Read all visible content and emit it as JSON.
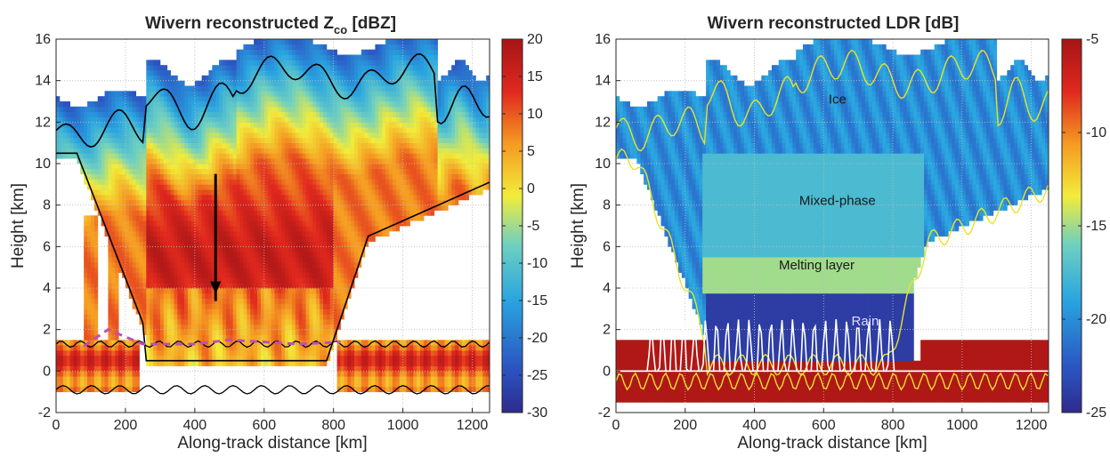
{
  "chart_data": [
    {
      "type": "heatmap",
      "title": "Wivern reconstructed Z",
      "title_subscript": "co",
      "title_suffix": " [dBZ]",
      "xlabel": "Along-track distance [km]",
      "ylabel": "Height [km]",
      "xlim": [
        0,
        1250
      ],
      "ylim": [
        -2,
        16
      ],
      "xticks": [
        0,
        200,
        400,
        600,
        800,
        1000,
        1200
      ],
      "yticks": [
        -2,
        0,
        2,
        4,
        6,
        8,
        10,
        12,
        14,
        16
      ],
      "grid": true,
      "colorbar": {
        "min": -30,
        "max": 20,
        "ticks": [
          20,
          15,
          10,
          5,
          0,
          -5,
          -10,
          -15,
          -20,
          -25,
          -30
        ],
        "colormap": "jet"
      },
      "annotations": [
        {
          "kind": "arrow",
          "x_from": 460,
          "y_from": 9.5,
          "x_to": 460,
          "y_to": 3.8,
          "color": "#000000"
        },
        {
          "kind": "dashed-line",
          "color": "#c04fb3",
          "points": [
            [
              80,
              1.2
            ],
            [
              150,
              2.0
            ],
            [
              250,
              1.3
            ],
            [
              400,
              1.3
            ],
            [
              500,
              1.5
            ],
            [
              700,
              1.3
            ],
            [
              820,
              1.4
            ]
          ]
        }
      ]
    },
    {
      "type": "heatmap",
      "title": "Wivern reconstructed LDR [dB]",
      "xlabel": "Along-track distance [km]",
      "ylabel": "Height [km]",
      "xlim": [
        0,
        1250
      ],
      "ylim": [
        -2,
        16
      ],
      "xticks": [
        0,
        200,
        400,
        600,
        800,
        1000,
        1200
      ],
      "yticks": [
        -2,
        0,
        2,
        4,
        6,
        8,
        10,
        12,
        14,
        16
      ],
      "grid": true,
      "colorbar": {
        "min": -25,
        "max": -5,
        "ticks": [
          -5,
          -10,
          -15,
          -20,
          -25
        ],
        "colormap": "jet"
      },
      "annotations": [
        {
          "kind": "text",
          "text": "Ice",
          "x": 640,
          "y": 12.9
        },
        {
          "kind": "text",
          "text": "Mixed-phase",
          "x": 640,
          "y": 8.0
        },
        {
          "kind": "text",
          "text": "Melting layer",
          "x": 580,
          "y": 4.9
        },
        {
          "kind": "text",
          "text": "Rain",
          "x": 720,
          "y": 2.2
        }
      ]
    }
  ]
}
